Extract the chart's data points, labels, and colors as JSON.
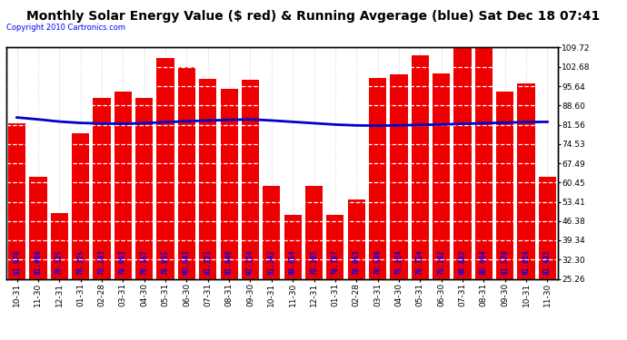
{
  "title": "Monthly Solar Energy Value ($ red) & Running Avgerage (blue) Sat Dec 18 07:41",
  "copyright": "Copyright 2010 Cartronics.com",
  "categories": [
    "10-31",
    "11-30",
    "12-31",
    "01-31",
    "02-28",
    "03-31",
    "04-30",
    "05-31",
    "06-30",
    "07-31",
    "08-31",
    "09-30",
    "10-31",
    "11-30",
    "12-31",
    "01-31",
    "02-28",
    "03-31",
    "04-30",
    "05-31",
    "06-30",
    "07-31",
    "08-31",
    "09-30",
    "10-31",
    "11-30"
  ],
  "bar_heights": [
    82.0,
    62.5,
    49.3,
    78.3,
    91.2,
    93.7,
    91.2,
    105.9,
    102.6,
    98.3,
    94.6,
    98.1,
    59.3,
    48.7,
    59.2,
    48.7,
    54.1,
    98.5,
    100.1,
    106.8,
    100.2,
    109.8,
    109.4,
    93.6,
    96.8,
    62.4
  ],
  "bar_labels": [
    "81.978",
    "81.486",
    "79.325",
    "78.325",
    "78.243",
    "78.693",
    "79.157",
    "79.935",
    "80.643",
    "81.323",
    "81.640",
    "82.114",
    "81.342",
    "80.654",
    "79.185",
    "78.707",
    "78.053",
    "78.546",
    "79.124",
    "79.754",
    "79.182",
    "80.802",
    "80.404",
    "81.579",
    "81.824",
    "81.432"
  ],
  "running_avg": [
    84.2,
    83.5,
    82.7,
    82.2,
    82.0,
    81.9,
    82.1,
    82.5,
    82.8,
    83.1,
    83.3,
    83.5,
    83.1,
    82.6,
    82.1,
    81.6,
    81.3,
    81.2,
    81.3,
    81.5,
    81.6,
    81.9,
    82.1,
    82.3,
    82.5,
    82.6
  ],
  "bar_color": "#ee0000",
  "line_color": "#0000cc",
  "bg_color": "#ffffff",
  "ymin": 25.26,
  "ymax": 109.72,
  "yticks": [
    25.26,
    32.3,
    39.34,
    46.38,
    53.41,
    60.45,
    67.49,
    74.53,
    81.56,
    88.6,
    95.64,
    102.68,
    109.72
  ],
  "ytick_labels": [
    "25.26",
    "32.30",
    "39.34",
    "46.38",
    "53.41",
    "60.45",
    "67.49",
    "74.53",
    "81.56",
    "88.60",
    "95.64",
    "102.68",
    "109.72"
  ],
  "title_fontsize": 10.0,
  "copyright_fontsize": 6.0,
  "tick_fontsize": 6.5,
  "label_fontsize": 5.5
}
